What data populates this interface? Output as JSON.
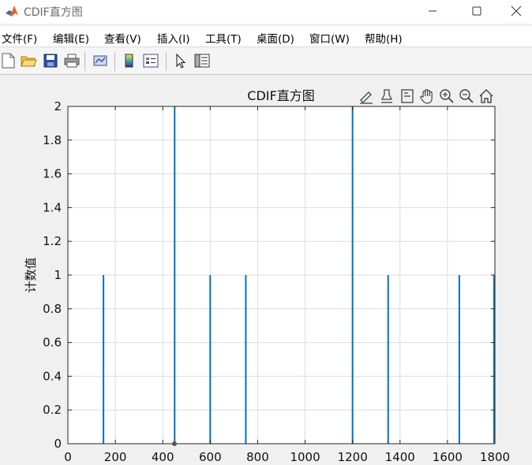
{
  "window": {
    "title": "CDIF直方图",
    "icon": "matlab-logo-icon",
    "buttons": [
      "minimize-icon",
      "maximize-icon",
      "close-icon"
    ]
  },
  "menu": {
    "items": [
      {
        "label": "文件(F)"
      },
      {
        "label": "编辑(E)"
      },
      {
        "label": "查看(V)"
      },
      {
        "label": "插入(I)"
      },
      {
        "label": "工具(T)"
      },
      {
        "label": "桌面(D)"
      },
      {
        "label": "窗口(W)"
      },
      {
        "label": "帮助(H)"
      }
    ]
  },
  "toolbar": {
    "icons": [
      "new-file-icon",
      "open-folder-icon",
      "save-icon",
      "print-icon",
      "link-plot-icon",
      "colorbar-icon",
      "legend-icon",
      "pointer-icon",
      "property-inspector-icon"
    ]
  },
  "axes_toolbar": {
    "icons": [
      "brush-edit-icon",
      "data-tips-icon",
      "brush-icon",
      "pan-icon",
      "zoom-in-icon",
      "zoom-out-icon",
      "home-icon"
    ]
  },
  "colors": {
    "bar": "#0072bd",
    "grid": "#dcdcdc",
    "axis": "#262626"
  },
  "chart_data": {
    "type": "bar",
    "title": "CDIF直方图",
    "xlabel": "",
    "ylabel": "计数值",
    "xlim": [
      0,
      1800
    ],
    "ylim": [
      0,
      2
    ],
    "x_ticks": [
      "0",
      "200",
      "400",
      "600",
      "800",
      "1000",
      "1200",
      "1400",
      "1600",
      "1800"
    ],
    "y_ticks": [
      "0",
      "0.2",
      "0.4",
      "0.6",
      "0.8",
      "1",
      "1.2",
      "1.4",
      "1.6",
      "1.8",
      "2"
    ],
    "grid": true,
    "bars": [
      {
        "x": 150,
        "y": 1
      },
      {
        "x": 450,
        "y": 2
      },
      {
        "x": 600,
        "y": 1
      },
      {
        "x": 750,
        "y": 1
      },
      {
        "x": 1200,
        "y": 2
      },
      {
        "x": 1350,
        "y": 1
      },
      {
        "x": 1650,
        "y": 1
      },
      {
        "x": 1800,
        "y": 1
      }
    ]
  }
}
